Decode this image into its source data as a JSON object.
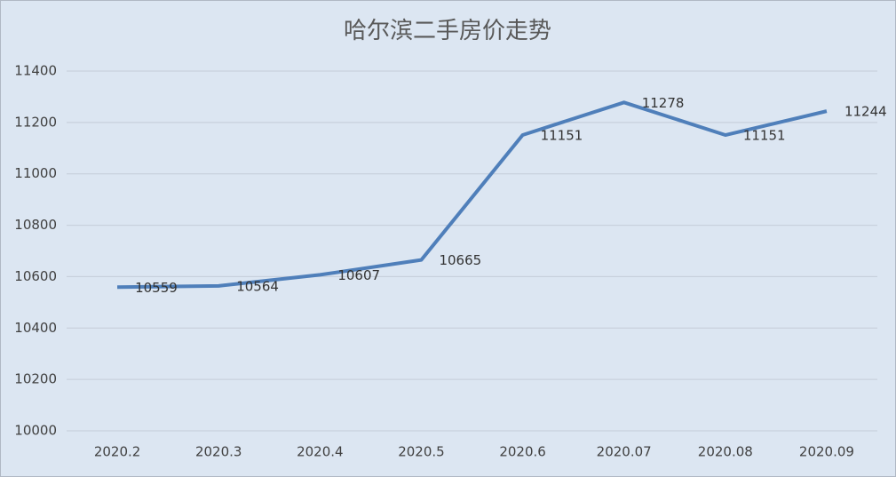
{
  "chart_data": {
    "type": "line",
    "title": "哈尔滨二手房价走势",
    "categories": [
      "2020.2",
      "2020.3",
      "2020.4",
      "2020.5",
      "2020.6",
      "2020.07",
      "2020.08",
      "2020.09"
    ],
    "values": [
      10559,
      10564,
      10607,
      10665,
      11151,
      11278,
      11151,
      11244
    ],
    "color": "#4f7fba",
    "ylim": [
      10000,
      11400
    ],
    "yticks": [
      10000,
      10200,
      10400,
      10600,
      10800,
      11000,
      11200,
      11400
    ],
    "grid": true
  }
}
